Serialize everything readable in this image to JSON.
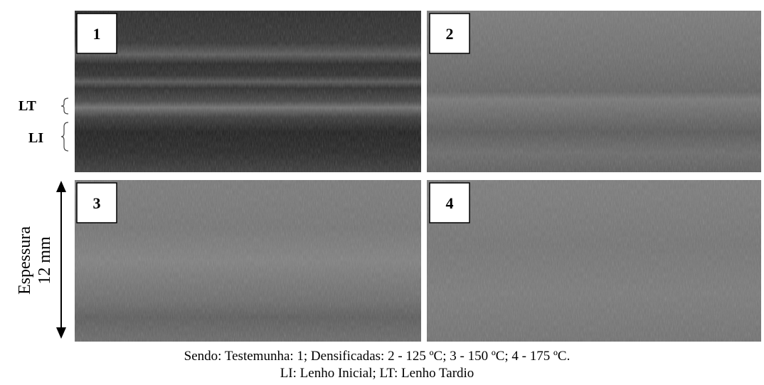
{
  "panels": [
    {
      "label": "1"
    },
    {
      "label": "2"
    },
    {
      "label": "3"
    },
    {
      "label": "4"
    }
  ],
  "annotations": {
    "late_wood": "LT",
    "early_wood": "LI"
  },
  "thickness": {
    "name": "Espessura",
    "size": "12 mm"
  },
  "caption": [
    "Sendo: Testemunha: 1; Densificadas:  2 - 125 ºC; 3 - 150 ºC; 4 - 175 ºC.",
    "LI: Lenho Inicial; LT: Lenho Tardio"
  ]
}
